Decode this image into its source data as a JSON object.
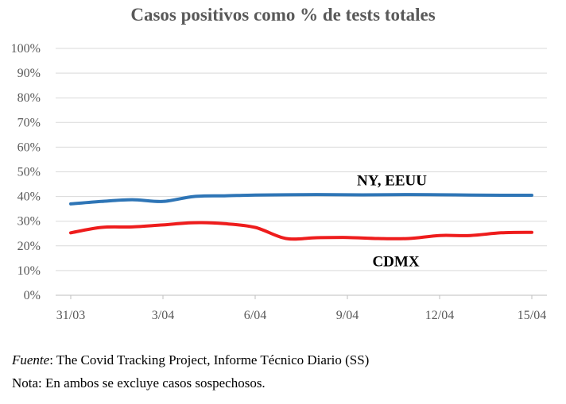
{
  "chart_data": {
    "type": "line",
    "title": "Casos positivos como % de tests totales",
    "xlabel": "",
    "ylabel": "",
    "ylim": [
      0,
      100
    ],
    "y_ticks": [
      "0%",
      "10%",
      "20%",
      "30%",
      "40%",
      "50%",
      "60%",
      "70%",
      "80%",
      "90%",
      "100%"
    ],
    "x_ticks": [
      "31/03",
      "3/04",
      "6/04",
      "9/04",
      "12/04",
      "15/04"
    ],
    "grid": true,
    "x": [
      "31/03",
      "1/04",
      "2/04",
      "3/04",
      "4/04",
      "5/04",
      "6/04",
      "7/04",
      "8/04",
      "9/04",
      "10/04",
      "11/04",
      "12/04",
      "13/04",
      "14/04",
      "15/04"
    ],
    "series": [
      {
        "name": "NY, EEUU",
        "color": "#2e75b6",
        "values": [
          37,
          38,
          38.7,
          38,
          40,
          40.3,
          40.6,
          40.7,
          40.8,
          40.7,
          40.7,
          40.8,
          40.7,
          40.6,
          40.5,
          40.5
        ]
      },
      {
        "name": "CDMX",
        "color": "#ee1c1c",
        "values": [
          25.3,
          27.5,
          27.7,
          28.5,
          29.4,
          29,
          27.5,
          23,
          23.3,
          23.4,
          23,
          23,
          24.2,
          24.2,
          25.3,
          25.5
        ]
      }
    ]
  },
  "footer": {
    "source_label": "Fuente",
    "source_text": ": The Covid Tracking Project, Informe Técnico Diario (SS)",
    "note": "Nota: En ambos se excluye casos sospechosos."
  }
}
